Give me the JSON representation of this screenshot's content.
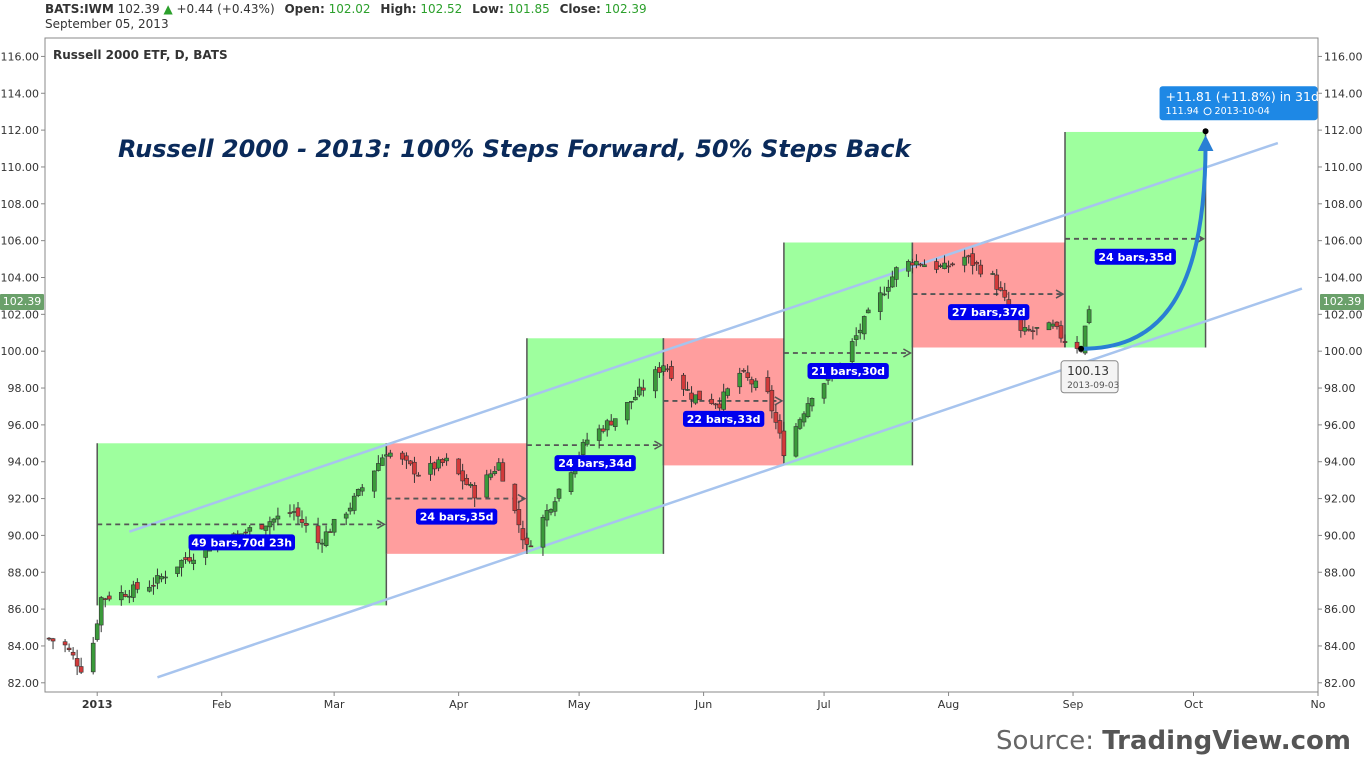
{
  "header": {
    "symbol": "BATS:IWM",
    "last": "102.39",
    "change": "+0.44 (+0.43%)",
    "open_label": "Open:",
    "open": "102.02",
    "high_label": "High:",
    "high": "102.52",
    "low_label": "Low:",
    "low": "101.85",
    "close_label": "Close:",
    "close": "102.39",
    "date": "September 05, 2013"
  },
  "price_tag": "102.39",
  "source_prefix": "Source:",
  "source_name": "TradingView.com",
  "colors": {
    "green_zone": "#99ff99",
    "red_zone": "#ff9999",
    "channel": "#a7c4ee",
    "label_bg": "#0000ee",
    "projection": "#2a7fd4",
    "up": "#3a9a3a",
    "down": "#d23a3a"
  },
  "chart_data": {
    "type": "candlestick",
    "subtitle": "Russell 2000 ETF, D, BATS",
    "title": "Russell 2000 - 2013: 100% Steps Forward, 50% Steps Back",
    "x_ticks": [
      "2013",
      "Feb",
      "Mar",
      "Apr",
      "May",
      "Jun",
      "Jul",
      "Aug",
      "Sep",
      "Oct",
      "No"
    ],
    "x_tick_dates": [
      "2013-01-01",
      "2013-02-01",
      "2013-03-01",
      "2013-04-01",
      "2013-05-01",
      "2013-06-01",
      "2013-07-01",
      "2013-08-01",
      "2013-09-01",
      "2013-10-01",
      "2013-11-01"
    ],
    "x_range": [
      "2012-12-19",
      "2013-11-01"
    ],
    "ylim": [
      81.5,
      117
    ],
    "y_ticks": [
      "82.00",
      "84.00",
      "86.00",
      "88.00",
      "90.00",
      "92.00",
      "94.00",
      "96.00",
      "98.00",
      "100.00",
      "102.00",
      "104.00",
      "106.00",
      "108.00",
      "110.00",
      "112.00",
      "114.00",
      "116.00"
    ],
    "close_path": [
      [
        "2012-12-20",
        84.4
      ],
      [
        "2012-12-24",
        84.0
      ],
      [
        "2012-12-28",
        82.8
      ],
      [
        "2012-12-31",
        84.2
      ],
      [
        "2013-01-02",
        86.6
      ],
      [
        "2013-01-08",
        86.9
      ],
      [
        "2013-01-15",
        87.4
      ],
      [
        "2013-01-22",
        88.6
      ],
      [
        "2013-01-29",
        89.4
      ],
      [
        "2013-02-05",
        90.0
      ],
      [
        "2013-02-12",
        90.7
      ],
      [
        "2013-02-19",
        91.3
      ],
      [
        "2013-02-25",
        89.6
      ],
      [
        "2013-03-05",
        91.6
      ],
      [
        "2013-03-14",
        94.6
      ],
      [
        "2013-03-22",
        93.4
      ],
      [
        "2013-03-29",
        94.0
      ],
      [
        "2013-04-05",
        92.3
      ],
      [
        "2013-04-11",
        93.9
      ],
      [
        "2013-04-18",
        89.3
      ],
      [
        "2013-04-26",
        92.5
      ],
      [
        "2013-05-03",
        95.2
      ],
      [
        "2013-05-10",
        96.4
      ],
      [
        "2013-05-17",
        98.0
      ],
      [
        "2013-05-22",
        99.3
      ],
      [
        "2013-05-29",
        97.6
      ],
      [
        "2013-06-05",
        97.2
      ],
      [
        "2013-06-10",
        98.8
      ],
      [
        "2013-06-17",
        97.6
      ],
      [
        "2013-06-21",
        94.6
      ],
      [
        "2013-06-28",
        97.7
      ],
      [
        "2013-07-05",
        99.2
      ],
      [
        "2013-07-11",
        101.6
      ],
      [
        "2013-07-19",
        104.4
      ],
      [
        "2013-07-23",
        104.9
      ],
      [
        "2013-07-31",
        104.5
      ],
      [
        "2013-08-05",
        105.1
      ],
      [
        "2013-08-12",
        104.0
      ],
      [
        "2013-08-19",
        101.0
      ],
      [
        "2013-08-27",
        101.3
      ],
      [
        "2013-08-30",
        100.6
      ],
      [
        "2013-09-03",
        100.2
      ],
      [
        "2013-09-05",
        102.39
      ]
    ],
    "zones": [
      {
        "color": "green",
        "x0": "2013-01-01",
        "x1": "2013-03-14",
        "y0": 86.2,
        "y1": 95.0
      },
      {
        "color": "red",
        "x0": "2013-03-14",
        "x1": "2013-04-18",
        "y0": 89.0,
        "y1": 95.0
      },
      {
        "color": "green",
        "x0": "2013-04-18",
        "x1": "2013-05-22",
        "y0": 89.0,
        "y1": 100.7
      },
      {
        "color": "red",
        "x0": "2013-05-22",
        "x1": "2013-06-21",
        "y0": 93.8,
        "y1": 100.7
      },
      {
        "color": "green",
        "x0": "2013-06-21",
        "x1": "2013-07-23",
        "y0": 93.8,
        "y1": 105.9
      },
      {
        "color": "red",
        "x0": "2013-07-23",
        "x1": "2013-08-30",
        "y0": 100.2,
        "y1": 105.9
      },
      {
        "color": "green",
        "x0": "2013-08-30",
        "x1": "2013-10-04",
        "y0": 100.2,
        "y1": 111.9
      }
    ],
    "measures": [
      {
        "label": "49 bars,70d 23h",
        "x0": "2013-01-01",
        "x1": "2013-03-14",
        "y": 90.6
      },
      {
        "label": "24 bars,35d",
        "x0": "2013-03-14",
        "x1": "2013-04-18",
        "y": 92.0
      },
      {
        "label": "24 bars,34d",
        "x0": "2013-04-18",
        "x1": "2013-05-22",
        "y": 94.9
      },
      {
        "label": "22 bars,33d",
        "x0": "2013-05-22",
        "x1": "2013-06-21",
        "y": 97.3
      },
      {
        "label": "21 bars,30d",
        "x0": "2013-06-21",
        "x1": "2013-07-23",
        "y": 99.9
      },
      {
        "label": "27 bars,37d",
        "x0": "2013-07-23",
        "x1": "2013-08-30",
        "y": 103.1
      },
      {
        "label": "24 bars,35d",
        "x0": "2013-08-30",
        "x1": "2013-10-04",
        "y": 106.1
      }
    ],
    "channel_lines": [
      {
        "x0": "2013-01-09",
        "y0": 90.2,
        "x1": "2013-10-22",
        "y1": 111.3
      },
      {
        "x0": "2013-01-16",
        "y0": 82.3,
        "x1": "2013-10-28",
        "y1": 103.4
      }
    ],
    "projection": {
      "start": {
        "date": "2013-09-03",
        "value": 100.13,
        "label": "100.13",
        "date_label": "2013-09-03"
      },
      "end": {
        "date": "2013-10-04",
        "value": 111.94,
        "label": "+11.81 (+11.8%) in 31d",
        "sub_value": "111.94",
        "sub_date": "2013-10-04"
      }
    }
  }
}
